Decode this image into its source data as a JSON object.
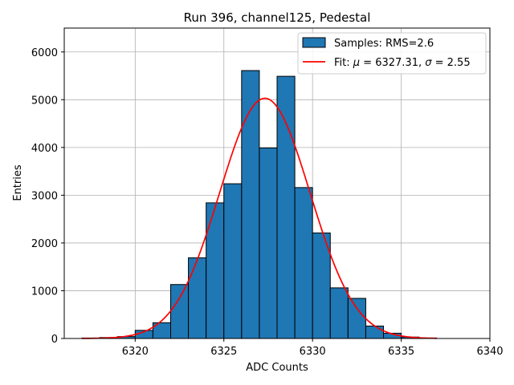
{
  "chart_data": {
    "type": "bar",
    "title": "Run 396, channel125, Pedestal",
    "xlabel": "ADC Counts",
    "ylabel": "Entries",
    "xlim": [
      6316,
      6340
    ],
    "ylim": [
      0,
      6500
    ],
    "xticks": [
      6320,
      6325,
      6330,
      6335,
      6340
    ],
    "yticks": [
      0,
      1000,
      2000,
      3000,
      4000,
      5000,
      6000
    ],
    "grid": true,
    "legend_position": "top-right",
    "histogram": {
      "name": "Samples: RMS=2.6",
      "color": "#1f77b4",
      "bin_edges": [
        6317,
        6318,
        6319,
        6320,
        6321,
        6322,
        6323,
        6324,
        6325,
        6326,
        6327,
        6328,
        6329,
        6330,
        6331,
        6332,
        6333,
        6334,
        6335,
        6336,
        6337
      ],
      "counts": [
        10,
        20,
        40,
        170,
        330,
        1130,
        1690,
        2840,
        3240,
        5610,
        3990,
        5490,
        3160,
        2210,
        1060,
        840,
        260,
        110,
        30,
        10
      ]
    },
    "fit": {
      "name_prefix": "Fit: ",
      "mu_symbol": "μ",
      "sigma_symbol": "σ",
      "mu_text": " = 6327.31, ",
      "sigma_text": " = 2.55",
      "color": "#ff0000",
      "mu": 6327.31,
      "sigma": 2.55,
      "amplitude": 5030,
      "x_range": [
        6317,
        6337
      ]
    }
  }
}
